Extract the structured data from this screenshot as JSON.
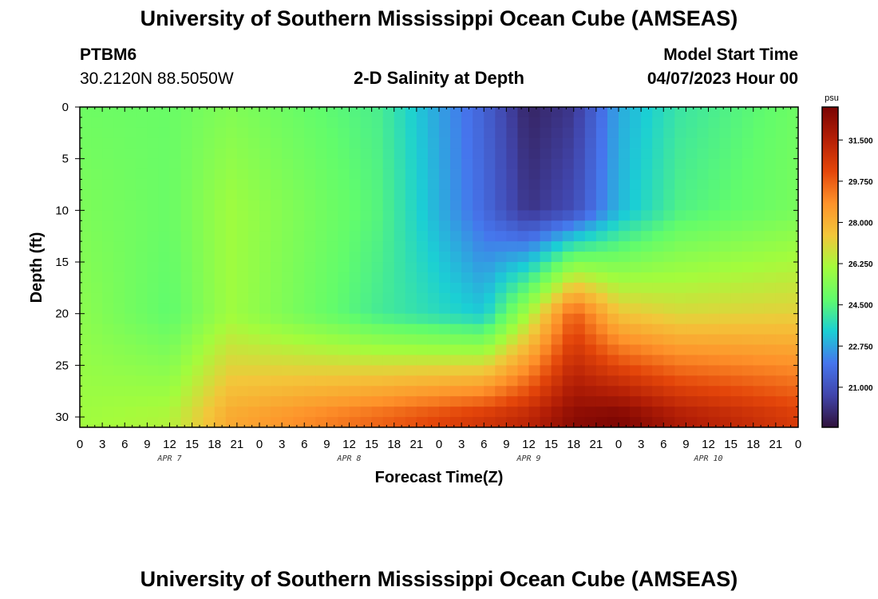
{
  "header": {
    "title": "University of Southern Mississippi Ocean Cube (AMSEAS)",
    "station_id": "PTBM6",
    "station_coords": "30.2120N  88.5050W",
    "plot_title": "2-D Salinity at Depth",
    "start_label": "Model Start Time",
    "start_value": "04/07/2023 Hour 00"
  },
  "footer": {
    "title": "University of Southern Mississippi Ocean Cube (AMSEAS)"
  },
  "chart_data": {
    "type": "heatmap",
    "title": "2-D Salinity at Depth",
    "xlabel": "Forecast Time(Z)",
    "ylabel": "Depth (ft)",
    "x_range_hours": [
      0,
      96
    ],
    "y_range_ft": [
      0,
      31
    ],
    "y_inverted": true,
    "x_tick_hours": [
      0,
      3,
      6,
      9,
      12,
      15,
      18,
      21,
      24,
      27,
      30,
      33,
      36,
      39,
      42,
      45,
      48,
      51,
      54,
      57,
      60,
      63,
      66,
      69,
      72,
      75,
      78,
      81,
      84,
      87,
      90,
      93,
      96
    ],
    "x_tick_labels": [
      "0",
      "3",
      "6",
      "9",
      "12",
      "15",
      "18",
      "21",
      "0",
      "3",
      "6",
      "9",
      "12",
      "15",
      "18",
      "21",
      "0",
      "3",
      "6",
      "9",
      "12",
      "15",
      "18",
      "21",
      "0",
      "3",
      "6",
      "9",
      "12",
      "15",
      "18",
      "21",
      "0"
    ],
    "y_ticks": [
      0,
      5,
      10,
      15,
      20,
      25,
      30
    ],
    "date_labels": [
      {
        "label": "APR 7",
        "hour": 12
      },
      {
        "label": "APR 8",
        "hour": 36
      },
      {
        "label": "APR 9",
        "hour": 60
      },
      {
        "label": "APR 10",
        "hour": 84
      }
    ],
    "colorbar": {
      "unit": "psu",
      "min": 19.3,
      "max": 32.9,
      "ticks": [
        21.0,
        22.75,
        24.5,
        26.25,
        28.0,
        29.75,
        31.5
      ],
      "tick_labels": [
        "21.000",
        "22.750",
        "24.500",
        "26.250",
        "28.000",
        "29.750",
        "31.500"
      ]
    },
    "series": [
      {
        "name": "surface_salinity_psu",
        "hours": [
          0,
          12,
          20,
          40,
          54,
          60,
          66,
          72,
          80,
          96
        ],
        "values": [
          25.0,
          24.9,
          25.4,
          24.3,
          21.5,
          19.8,
          20.3,
          22.8,
          24.0,
          25.0
        ]
      },
      {
        "name": "salinity_at_10ft_psu",
        "hours": [
          0,
          12,
          20,
          40,
          54,
          60,
          66,
          72,
          80,
          96
        ],
        "values": [
          25.3,
          24.9,
          26.0,
          24.5,
          21.7,
          20.2,
          20.9,
          23.0,
          24.4,
          25.2
        ]
      },
      {
        "name": "salinity_at_20ft_psu",
        "hours": [
          0,
          12,
          20,
          40,
          54,
          60,
          66,
          72,
          80,
          96
        ],
        "values": [
          25.6,
          24.7,
          26.0,
          24.2,
          23.3,
          26.2,
          29.8,
          27.5,
          27.0,
          27.2
        ]
      },
      {
        "name": "salinity_at_30ft_psu",
        "hours": [
          0,
          12,
          20,
          40,
          54,
          60,
          66,
          72,
          80,
          96
        ],
        "values": [
          26.0,
          26.3,
          28.2,
          29.6,
          30.7,
          31.3,
          32.5,
          32.8,
          31.7,
          30.5
        ]
      }
    ],
    "grid": false
  }
}
